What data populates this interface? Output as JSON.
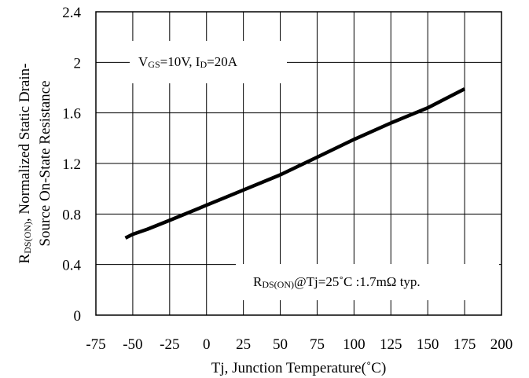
{
  "chart_data": {
    "type": "line",
    "xlabel": "Tj, Junction Temperature(˚C)",
    "ylabel_line1": {
      "main": "R",
      "sub": "DS(ON)",
      "rest": ", Normalized Static Drain-"
    },
    "ylabel_line2": "Source On-State Resistance",
    "xlim": [
      -75,
      200
    ],
    "ylim": [
      0,
      2.4
    ],
    "xticks": [
      -75,
      -50,
      -25,
      0,
      25,
      50,
      75,
      100,
      125,
      150,
      175,
      200
    ],
    "yticks": [
      0,
      0.4,
      0.8,
      1.2,
      1.6,
      2,
      2.4
    ],
    "ytick_labels": [
      "0",
      "0.4",
      "0.8",
      "1.2",
      "1.6",
      "2",
      "2.4"
    ],
    "grid": true,
    "series": [
      {
        "color": "#000000",
        "x": [
          -55,
          -50,
          -40,
          -25,
          0,
          25,
          50,
          75,
          100,
          125,
          150,
          175
        ],
        "y": [
          0.61,
          0.64,
          0.68,
          0.75,
          0.87,
          0.99,
          1.11,
          1.25,
          1.39,
          1.52,
          1.64,
          1.79
        ]
      }
    ],
    "annotations": {
      "conditions": {
        "v": "V",
        "v_sub": "GS",
        "mid": "=10V, I",
        "i_sub": "D",
        "end": "=20A"
      },
      "note": {
        "r": "R",
        "r_sub": "DS(ON)",
        "rest": "@Tj=25˚C :1.7mΩ typ."
      }
    }
  }
}
